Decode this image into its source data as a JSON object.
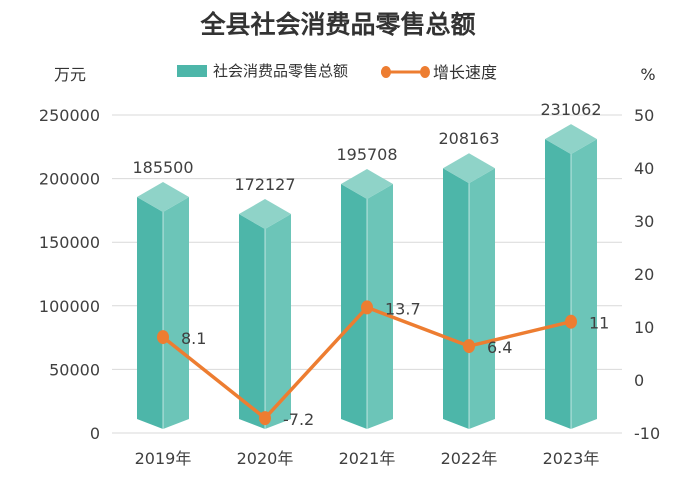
{
  "chart_data": {
    "type": "bar",
    "title": "全县社会消费品零售总额",
    "y_unit_left": "万元",
    "y_unit_right": "%",
    "categories": [
      "2019年",
      "2020年",
      "2021年",
      "2022年",
      "2023年"
    ],
    "series": [
      {
        "name": "社会消费品零售总额",
        "type": "bar",
        "axis": "left",
        "values": [
          185500,
          172127,
          195708,
          208163,
          231062
        ],
        "labels": [
          "185500",
          "172127",
          "195708",
          "208163",
          "231062"
        ]
      },
      {
        "name": "增长速度",
        "type": "line",
        "axis": "right",
        "values": [
          8.1,
          -7.2,
          13.7,
          6.4,
          11
        ],
        "labels": [
          "8.1",
          "-7.2",
          "13.7",
          "6.4",
          "11"
        ]
      }
    ],
    "ylim_left": [
      0,
      250000
    ],
    "yticks_left": [
      0,
      50000,
      100000,
      150000,
      200000,
      250000
    ],
    "ylim_right": [
      -10,
      50
    ],
    "yticks_right": [
      -10,
      0,
      10,
      20,
      30,
      40,
      50
    ],
    "grid": true,
    "legend_position": "top",
    "colors": {
      "bar_front": "#4db6a9",
      "bar_side": "#6cc5b8",
      "bar_top": "#8fd3c8",
      "line": "#ed7d31",
      "grid": "#d9d9d9"
    }
  }
}
